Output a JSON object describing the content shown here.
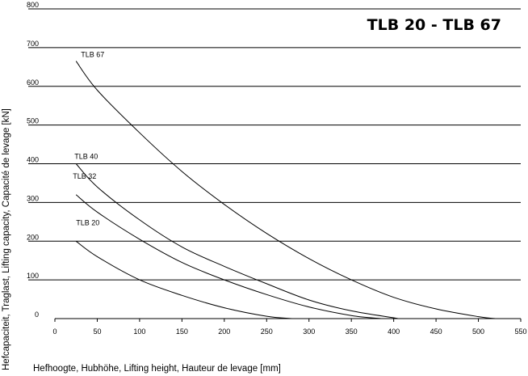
{
  "chart_data": {
    "type": "line",
    "title": "TLB 20 - TLB 67",
    "xlabel": "Hefhoogte, Hubhöhe, Lifting height, Hauteur de levage [mm]",
    "ylabel": "Hefcapaciteit, Traglast, Lifting capacity, Capacité de levage [kN]",
    "xlim": [
      0,
      550
    ],
    "ylim": [
      0,
      800
    ],
    "xticks": [
      "0",
      "50",
      "100",
      "150",
      "200",
      "250",
      "300",
      "350",
      "400",
      "450",
      "500",
      "550"
    ],
    "yticks": [
      "0",
      "100",
      "200",
      "300",
      "400",
      "500",
      "600",
      "700",
      "800"
    ],
    "grid": "horizontal",
    "legend": "none (curves labelled directly)",
    "series": [
      {
        "name": "TLB 67",
        "x": [
          25,
          50,
          100,
          150,
          200,
          250,
          300,
          350,
          400,
          450,
          500,
          520
        ],
        "y": [
          665,
          590,
          480,
          380,
          295,
          220,
          155,
          100,
          55,
          25,
          5,
          0
        ]
      },
      {
        "name": "TLB 40",
        "x": [
          25,
          50,
          100,
          150,
          200,
          250,
          300,
          350,
          400,
          405
        ],
        "y": [
          400,
          340,
          255,
          185,
          135,
          90,
          48,
          20,
          2,
          0
        ]
      },
      {
        "name": "TLB 32",
        "x": [
          25,
          50,
          100,
          150,
          200,
          250,
          300,
          350,
          385
        ],
        "y": [
          320,
          275,
          205,
          145,
          100,
          62,
          30,
          8,
          0
        ]
      },
      {
        "name": "TLB 20",
        "x": [
          25,
          50,
          100,
          150,
          200,
          250,
          280
        ],
        "y": [
          200,
          160,
          100,
          60,
          28,
          6,
          0
        ]
      }
    ]
  }
}
